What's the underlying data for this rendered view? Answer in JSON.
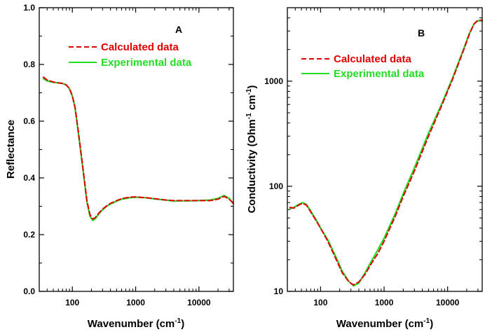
{
  "chart_data": [
    {
      "type": "line",
      "panel_label": "A",
      "xlabel_main": "Wavenumber (cm",
      "xlabel_sup": "-1",
      "xlabel_end": ")",
      "ylabel": "Reflectance",
      "x_scale": "log",
      "xlim": [
        30,
        35000
      ],
      "ylim": [
        0.0,
        1.0
      ],
      "x_ticks": [
        100,
        1000,
        10000
      ],
      "x_tick_labels": [
        "100",
        "1000",
        "10000"
      ],
      "y_ticks": [
        0.0,
        0.2,
        0.4,
        0.6,
        0.8,
        1.0
      ],
      "y_tick_labels": [
        "0.0",
        "0.2",
        "0.4",
        "0.6",
        "0.8",
        "1.0"
      ],
      "legend_position": "top-center",
      "series": [
        {
          "name": "Calculated data",
          "color": "#e00000",
          "style": "dashed",
          "x": [
            35,
            40,
            50,
            60,
            70,
            80,
            90,
            100,
            110,
            120,
            130,
            150,
            170,
            190,
            210,
            230,
            260,
            300,
            350,
            400,
            500,
            600,
            800,
            1000,
            1500,
            2000,
            3000,
            4000,
            5000,
            7000,
            10000,
            15000,
            20000,
            25000,
            30000,
            35000
          ],
          "y": [
            0.755,
            0.745,
            0.738,
            0.735,
            0.733,
            0.728,
            0.715,
            0.69,
            0.65,
            0.59,
            0.53,
            0.42,
            0.32,
            0.27,
            0.255,
            0.26,
            0.275,
            0.29,
            0.302,
            0.31,
            0.32,
            0.327,
            0.332,
            0.333,
            0.33,
            0.327,
            0.322,
            0.32,
            0.32,
            0.32,
            0.32,
            0.32,
            0.325,
            0.335,
            0.325,
            0.31
          ]
        },
        {
          "name": "Experimental data",
          "color": "#22dd22",
          "style": "solid",
          "x": [
            35,
            40,
            50,
            60,
            70,
            80,
            90,
            100,
            110,
            120,
            130,
            150,
            170,
            190,
            210,
            230,
            260,
            300,
            350,
            400,
            500,
            600,
            800,
            1000,
            1500,
            2000,
            3000,
            4000,
            5000,
            7000,
            10000,
            15000,
            20000,
            25000,
            30000,
            35000
          ],
          "y": [
            0.75,
            0.742,
            0.737,
            0.735,
            0.733,
            0.728,
            0.714,
            0.688,
            0.648,
            0.585,
            0.525,
            0.415,
            0.315,
            0.265,
            0.25,
            0.256,
            0.272,
            0.288,
            0.3,
            0.308,
            0.318,
            0.325,
            0.33,
            0.332,
            0.33,
            0.326,
            0.322,
            0.318,
            0.319,
            0.319,
            0.32,
            0.322,
            0.328,
            0.338,
            0.328,
            0.31
          ]
        }
      ]
    },
    {
      "type": "line",
      "panel_label": "B",
      "xlabel_main": "Wavenumber (cm",
      "xlabel_sup": "-1",
      "xlabel_end": ")",
      "ylabel_main": "Conductivity (Ohm",
      "ylabel_sup1": "-1",
      "ylabel_mid": " cm",
      "ylabel_sup2": "-1",
      "ylabel_end": ")",
      "x_scale": "log",
      "y_scale": "log",
      "xlim": [
        30,
        35000
      ],
      "ylim": [
        10,
        5000
      ],
      "x_ticks": [
        100,
        1000,
        10000
      ],
      "x_tick_labels": [
        "100",
        "1000",
        "10000"
      ],
      "y_ticks": [
        10,
        100,
        1000
      ],
      "y_tick_labels": [
        "10",
        "100",
        "1000"
      ],
      "legend_position": "top-left",
      "series": [
        {
          "name": "Calculated data",
          "color": "#e00000",
          "style": "dashed",
          "x": [
            33,
            38,
            45,
            52,
            60,
            70,
            85,
            100,
            130,
            170,
            220,
            280,
            330,
            400,
            500,
            650,
            800,
            1000,
            1500,
            2000,
            3000,
            5000,
            8000,
            12000,
            18000,
            22000,
            26000,
            30000,
            35000
          ],
          "y": [
            63,
            62,
            66,
            69,
            66,
            57,
            47,
            40,
            30,
            21,
            15,
            12.3,
            11.5,
            12.3,
            14.5,
            19,
            23,
            30,
            52,
            80,
            140,
            300,
            580,
            1050,
            2000,
            2800,
            3500,
            3800,
            3800
          ]
        },
        {
          "name": "Experimental data",
          "color": "#22dd22",
          "style": "solid",
          "x": [
            33,
            38,
            45,
            52,
            60,
            70,
            85,
            100,
            130,
            170,
            220,
            280,
            330,
            400,
            500,
            650,
            800,
            1000,
            1500,
            2000,
            3000,
            5000,
            8000,
            12000,
            18000,
            22000,
            26000,
            30000,
            35000
          ],
          "y": [
            61,
            63,
            67,
            70,
            67,
            58,
            48,
            40,
            31,
            22,
            15.5,
            12.4,
            11.3,
            12.0,
            15,
            20,
            25,
            32,
            55,
            85,
            150,
            320,
            600,
            1080,
            2050,
            2850,
            3500,
            3750,
            3750
          ]
        }
      ]
    }
  ]
}
